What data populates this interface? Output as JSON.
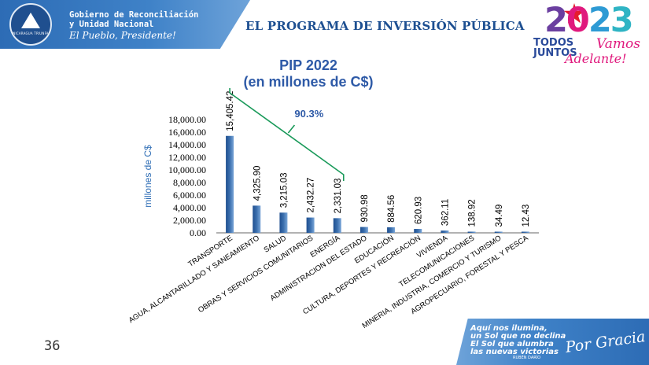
{
  "header": {
    "gov_line1": "Gobierno de Reconciliación",
    "gov_line2": "y Unidad Nacional",
    "slogan": "El Pueblo, Presidente!",
    "emblem_text": "NICARAGUA TRIUNFA",
    "title": "EL PROGRAMA DE INVERSIÓN PÚBLICA"
  },
  "logo": {
    "year_digits": [
      "2",
      "0",
      "2",
      "3"
    ],
    "todos": "TODOS",
    "juntos": "JUNTOS",
    "vamos": "Vamos",
    "adelante": "Adelante!",
    "colors": {
      "star": "#e51d2e",
      "purple": "#6b3fa0",
      "pink": "#e0197d",
      "blue": "#2d9ad4",
      "teal": "#2fb4c4"
    }
  },
  "footer": {
    "page_number": "36",
    "poem_lines": [
      "Aquí nos ilumina,",
      "un Sol que no declina",
      "El Sol que alumbra",
      "las nuevas victorias"
    ],
    "poem_author": "RUBÉN DARÍO",
    "script_text": "Por Gracia de Dios!"
  },
  "chart_data": {
    "type": "bar",
    "title": "PIP 2022",
    "subtitle": "(en millones de C$)",
    "ylabel": "millones de C$",
    "xlabel": "",
    "ylim": [
      0,
      18000
    ],
    "yticks": [
      0,
      2000,
      4000,
      6000,
      8000,
      10000,
      12000,
      14000,
      16000,
      18000
    ],
    "ytick_labels": [
      "0.00",
      "2,000.00",
      "4,000.00",
      "6,000.00",
      "8,000.00",
      "10,000.00",
      "12,000.00",
      "14,000.00",
      "16,000.00",
      "18,000.00"
    ],
    "categories": [
      "TRANSPORTE",
      "AGUA, ALCANTARILLADO Y SANEAMIENTO",
      "SALUD",
      "OBRAS Y SERVICIOS COMUNITARIOS",
      "ENERGÍA",
      "ADMINISTRACION DEL ESTADO",
      "EDUCACIÓN",
      "CULTURA, DEPORTES Y RECREACIÓN",
      "VIVIENDA",
      "TELECOMUNICACIONES",
      "MINERIA, INDUSTRIA, COMERCIO Y TURISMO",
      "AGROPECUARIO, FORESTAL Y PESCA"
    ],
    "values": [
      15405.42,
      4325.9,
      3215.03,
      2432.27,
      2331.03,
      930.98,
      884.56,
      620.93,
      362.11,
      138.92,
      34.49,
      12.43
    ],
    "value_labels": [
      "15,405.42",
      "4,325.90",
      "3,215.03",
      "2,432.27",
      "2,331.03",
      "930.98",
      "884.56",
      "620.93",
      "362.11",
      "138.92",
      "34.49",
      "12.43"
    ],
    "annotation": {
      "text": "90.3%",
      "covers_categories": [
        0,
        4
      ]
    },
    "grid": false,
    "legend": "none",
    "colors": {
      "bar": "#3b6fae",
      "annotation": "#1a9a5a",
      "title": "#2e5aa7",
      "ylabel": "#2e6db5"
    }
  }
}
